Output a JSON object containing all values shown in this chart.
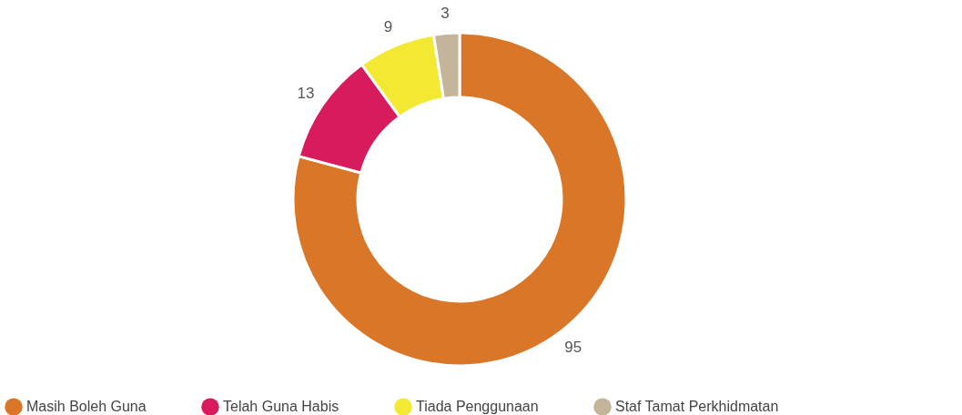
{
  "chart_data": {
    "type": "donut",
    "categories": [
      "Masih Boleh Guna",
      "Telah Guna Habis",
      "Tiada Penggunaan",
      "Staf Tamat Perkhidmatan"
    ],
    "values": [
      95,
      13,
      9,
      3
    ],
    "colors": [
      "#d97628",
      "#d81b5c",
      "#f3e832",
      "#c4b59a"
    ],
    "data_labels": true,
    "legend": "bottom"
  }
}
